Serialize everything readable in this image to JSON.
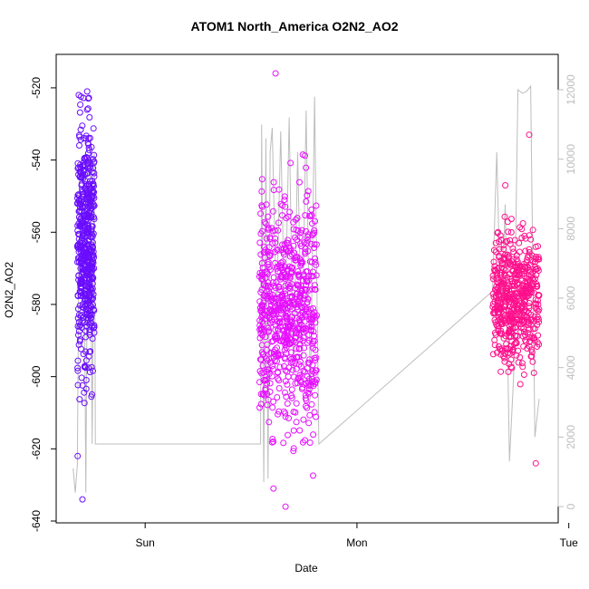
{
  "chart_data": {
    "type": "scatter",
    "title": "ATOM1 North_America O2N2_AO2",
    "xlabel": "Date",
    "ylabel": "O2N2_AO2",
    "x_ticks": [
      "Sun",
      "Mon",
      "Tue"
    ],
    "ylim": [
      -640,
      -515
    ],
    "y_ticks": [
      -640,
      -620,
      -600,
      -580,
      -560,
      -540,
      -520
    ],
    "y2lim": [
      0,
      12000
    ],
    "y2_ticks": [
      0,
      2000,
      4000,
      6000,
      8000,
      10000,
      12000
    ],
    "grid": false,
    "series": [
      {
        "color": "#6a0dff",
        "clusters": [
          {
            "x": [
              -0.32,
              -0.24
            ],
            "y": [
              -628,
              -521
            ],
            "n": 520,
            "center": -563,
            "spread": 16,
            "extremes": [
              -634,
              -522,
              -521,
              -622
            ]
          }
        ]
      },
      {
        "color": "#e60fff",
        "clusters": [
          {
            "x": [
              0.54,
              0.81
            ],
            "y": [
              -636,
              -516
            ],
            "n": 700,
            "center": -582,
            "spread": 15,
            "extremes": [
              -636,
              -516,
              -618,
              -631
            ]
          }
        ]
      },
      {
        "color": "#ff0f8c",
        "clusters": [
          {
            "x": [
              1.64,
              1.86
            ],
            "y": [
              -624,
              -533
            ],
            "n": 520,
            "center": -578,
            "spread": 9,
            "extremes": [
              -624,
              -533,
              -547
            ]
          }
        ]
      },
      {
        "color": "#bdbdbd",
        "axis": "right",
        "type": "line",
        "x": [
          -0.34,
          -0.33,
          -0.32,
          -0.31,
          -0.3,
          -0.29,
          -0.28,
          -0.27,
          -0.26,
          -0.25,
          -0.24,
          -0.235,
          0.545,
          0.55,
          0.56,
          0.57,
          0.58,
          0.59,
          0.6,
          0.62,
          0.64,
          0.66,
          0.68,
          0.7,
          0.72,
          0.74,
          0.76,
          0.78,
          0.8,
          0.82,
          1.64,
          1.66,
          1.68,
          1.7,
          1.72,
          1.74,
          1.76,
          1.78,
          1.8,
          1.82,
          1.84,
          1.86
        ],
        "y2": [
          1100,
          400,
          1200,
          9800,
          9600,
          9500,
          400,
          9800,
          9900,
          1800,
          10200,
          1800,
          1800,
          11000,
          700,
          10600,
          800,
          10200,
          10900,
          5400,
          10800,
          5000,
          11200,
          3800,
          10200,
          4200,
          11400,
          3100,
          11800,
          1800,
          6200,
          10200,
          5200,
          8700,
          1300,
          3800,
          12000,
          11900,
          11950,
          12100,
          2000,
          3100
        ]
      }
    ]
  }
}
